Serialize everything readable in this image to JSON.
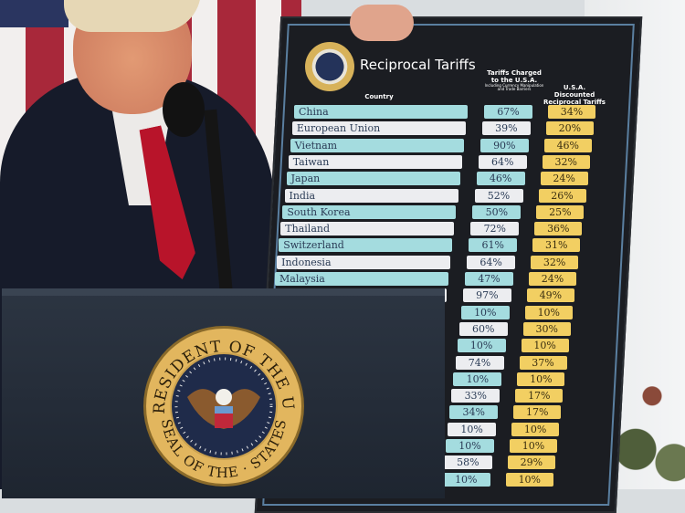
{
  "board": {
    "title": "Reciprocal Tariffs",
    "headers": {
      "country": "Country",
      "charged": "Tariffs Charged to the U.S.A.",
      "charged_note": "Including Currency Manipulation and Trade Barriers",
      "discounted": "U.S.A. Discounted Reciprocal Tariffs"
    },
    "rows": [
      {
        "country": "China",
        "charged": "67%",
        "discounted": "34%"
      },
      {
        "country": "European Union",
        "charged": "39%",
        "discounted": "20%"
      },
      {
        "country": "Vietnam",
        "charged": "90%",
        "discounted": "46%"
      },
      {
        "country": "Taiwan",
        "charged": "64%",
        "discounted": "32%"
      },
      {
        "country": "Japan",
        "charged": "46%",
        "discounted": "24%"
      },
      {
        "country": "India",
        "charged": "52%",
        "discounted": "26%"
      },
      {
        "country": "South Korea",
        "charged": "50%",
        "discounted": "25%"
      },
      {
        "country": "Thailand",
        "charged": "72%",
        "discounted": "36%"
      },
      {
        "country": "Switzerland",
        "charged": "61%",
        "discounted": "31%"
      },
      {
        "country": "Indonesia",
        "charged": "64%",
        "discounted": "32%"
      },
      {
        "country": "Malaysia",
        "charged": "47%",
        "discounted": "24%"
      },
      {
        "country": "",
        "charged": "97%",
        "discounted": "49%"
      },
      {
        "country": "",
        "charged": "10%",
        "discounted": "10%"
      },
      {
        "country": "",
        "charged": "60%",
        "discounted": "30%"
      },
      {
        "country": "",
        "charged": "10%",
        "discounted": "10%"
      },
      {
        "country": "",
        "charged": "74%",
        "discounted": "37%"
      },
      {
        "country": "",
        "charged": "10%",
        "discounted": "10%"
      },
      {
        "country": "",
        "charged": "33%",
        "discounted": "17%"
      },
      {
        "country": "",
        "charged": "34%",
        "discounted": "17%"
      },
      {
        "country": "",
        "charged": "10%",
        "discounted": "10%"
      },
      {
        "country": "",
        "charged": "10%",
        "discounted": "10%"
      },
      {
        "country": "",
        "charged": "58%",
        "discounted": "29%"
      },
      {
        "country": "",
        "charged": "10%",
        "discounted": "10%"
      }
    ]
  },
  "seal": {
    "top_text": "THE PRESIDENT OF THE UNITED",
    "bottom_text": "SEAL OF THE · STATES"
  },
  "colors": {
    "teal": "#a4dcdf",
    "white": "#ecedf0",
    "gold": "#f2cf62",
    "board": "#1b1d22"
  }
}
